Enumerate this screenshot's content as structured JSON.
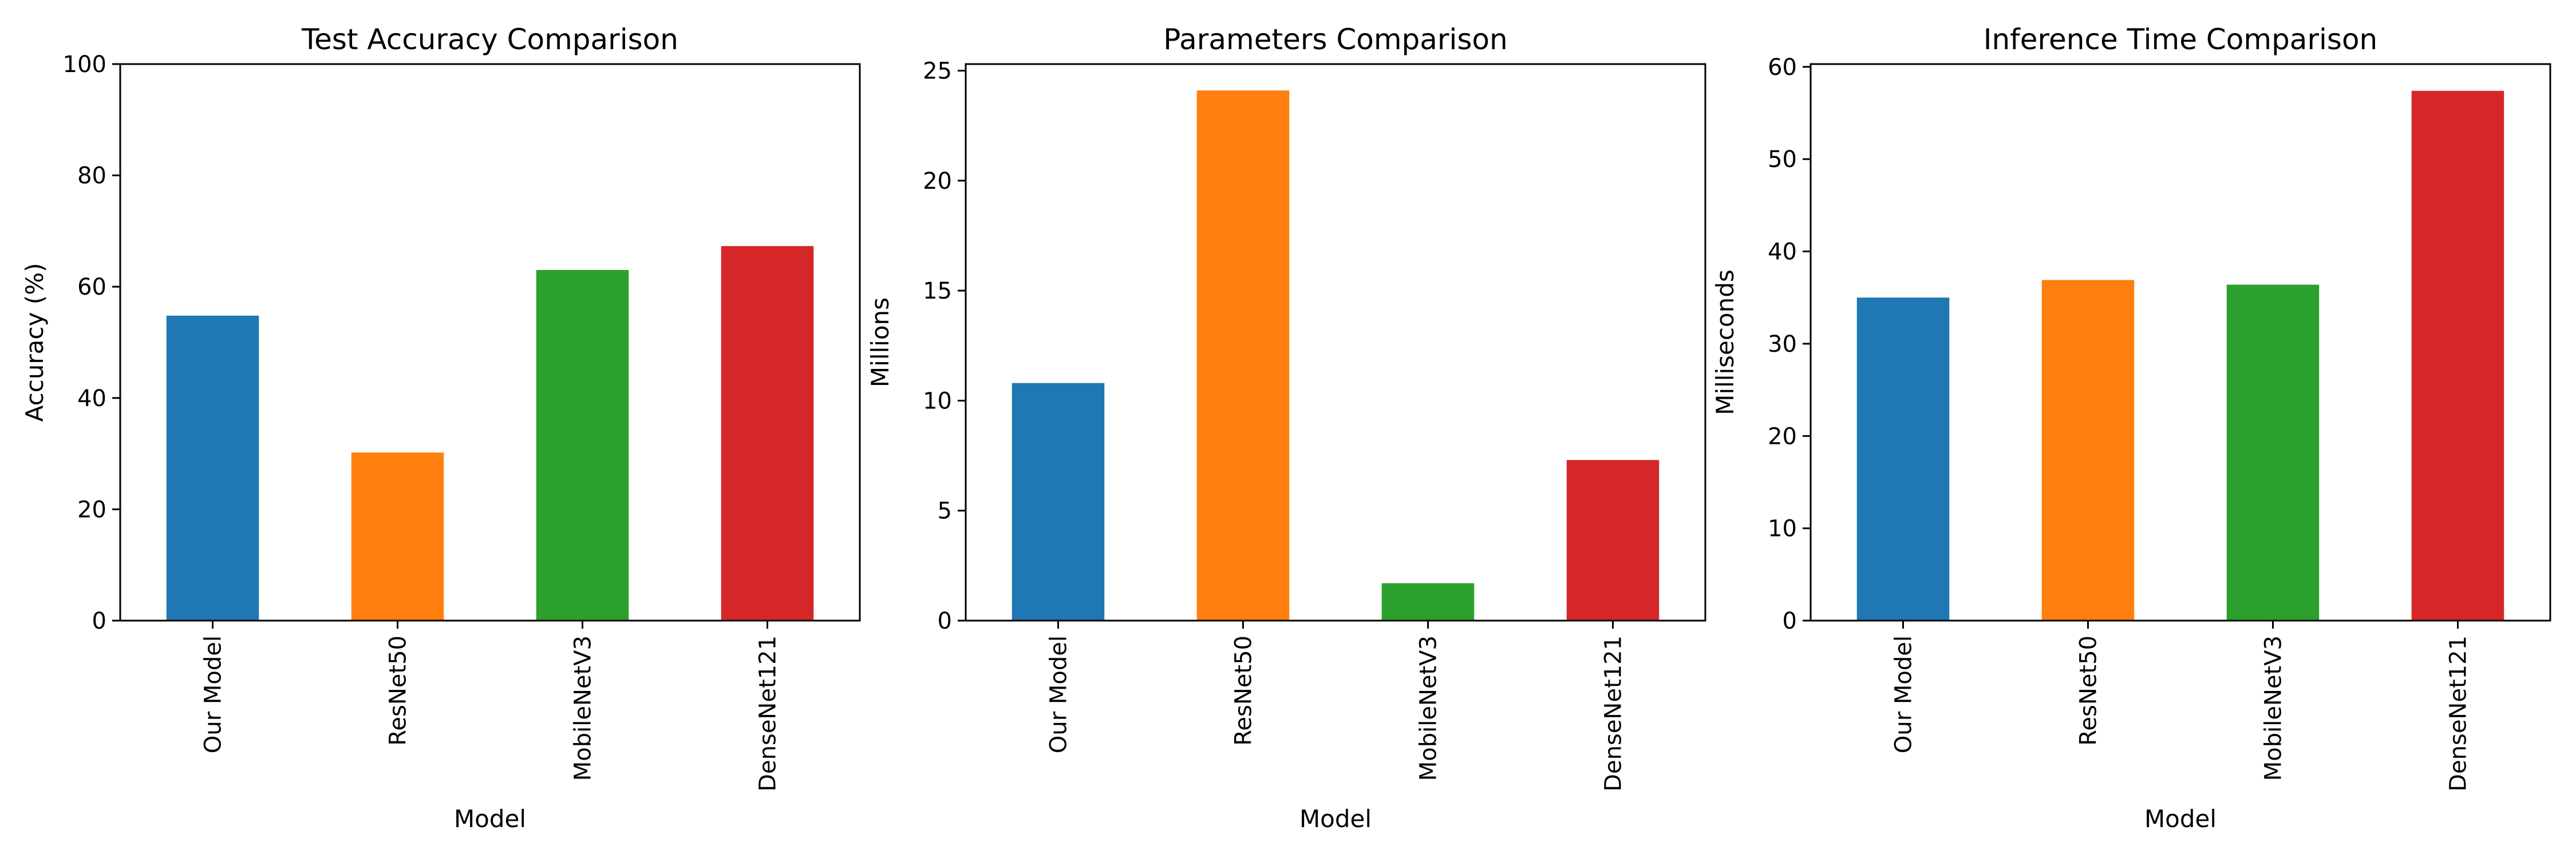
{
  "chart_data": [
    {
      "type": "bar",
      "title": "Test Accuracy Comparison",
      "xlabel": "Model",
      "ylabel": "Accuracy (%)",
      "categories": [
        "Our Model",
        "ResNet50",
        "MobileNetV3",
        "DenseNet121"
      ],
      "values": [
        54.8,
        30.2,
        63.0,
        67.3
      ],
      "colors": [
        "#1f77b4",
        "#ff7f0e",
        "#2ca02c",
        "#d62728"
      ],
      "ylim": [
        0,
        100
      ],
      "yticks": [
        0,
        20,
        40,
        60,
        80,
        100
      ],
      "ytick_labels": [
        "0",
        "20",
        "40",
        "60",
        "80",
        "100"
      ],
      "grid": false,
      "legend": "none"
    },
    {
      "type": "bar",
      "title": "Parameters Comparison",
      "xlabel": "Model",
      "ylabel": "Millions",
      "categories": [
        "Our Model",
        "ResNet50",
        "MobileNetV3",
        "DenseNet121"
      ],
      "values": [
        10.8,
        24.1,
        1.7,
        7.3
      ],
      "colors": [
        "#1f77b4",
        "#ff7f0e",
        "#2ca02c",
        "#d62728"
      ],
      "ylim": [
        0,
        25.3
      ],
      "yticks": [
        0,
        5,
        10,
        15,
        20,
        25
      ],
      "ytick_labels": [
        "0",
        "5",
        "10",
        "15",
        "20",
        "25"
      ],
      "grid": false,
      "legend": "none"
    },
    {
      "type": "bar",
      "title": "Inference Time Comparison",
      "xlabel": "Model",
      "ylabel": "Milliseconds",
      "categories": [
        "Our Model",
        "ResNet50",
        "MobileNetV3",
        "DenseNet121"
      ],
      "values": [
        35.0,
        36.9,
        36.4,
        57.4
      ],
      "colors": [
        "#1f77b4",
        "#ff7f0e",
        "#2ca02c",
        "#d62728"
      ],
      "ylim": [
        0,
        60.3
      ],
      "yticks": [
        0,
        10,
        20,
        30,
        40,
        50,
        60
      ],
      "ytick_labels": [
        "0",
        "10",
        "20",
        "30",
        "40",
        "50",
        "60"
      ],
      "grid": false,
      "legend": "none"
    }
  ]
}
